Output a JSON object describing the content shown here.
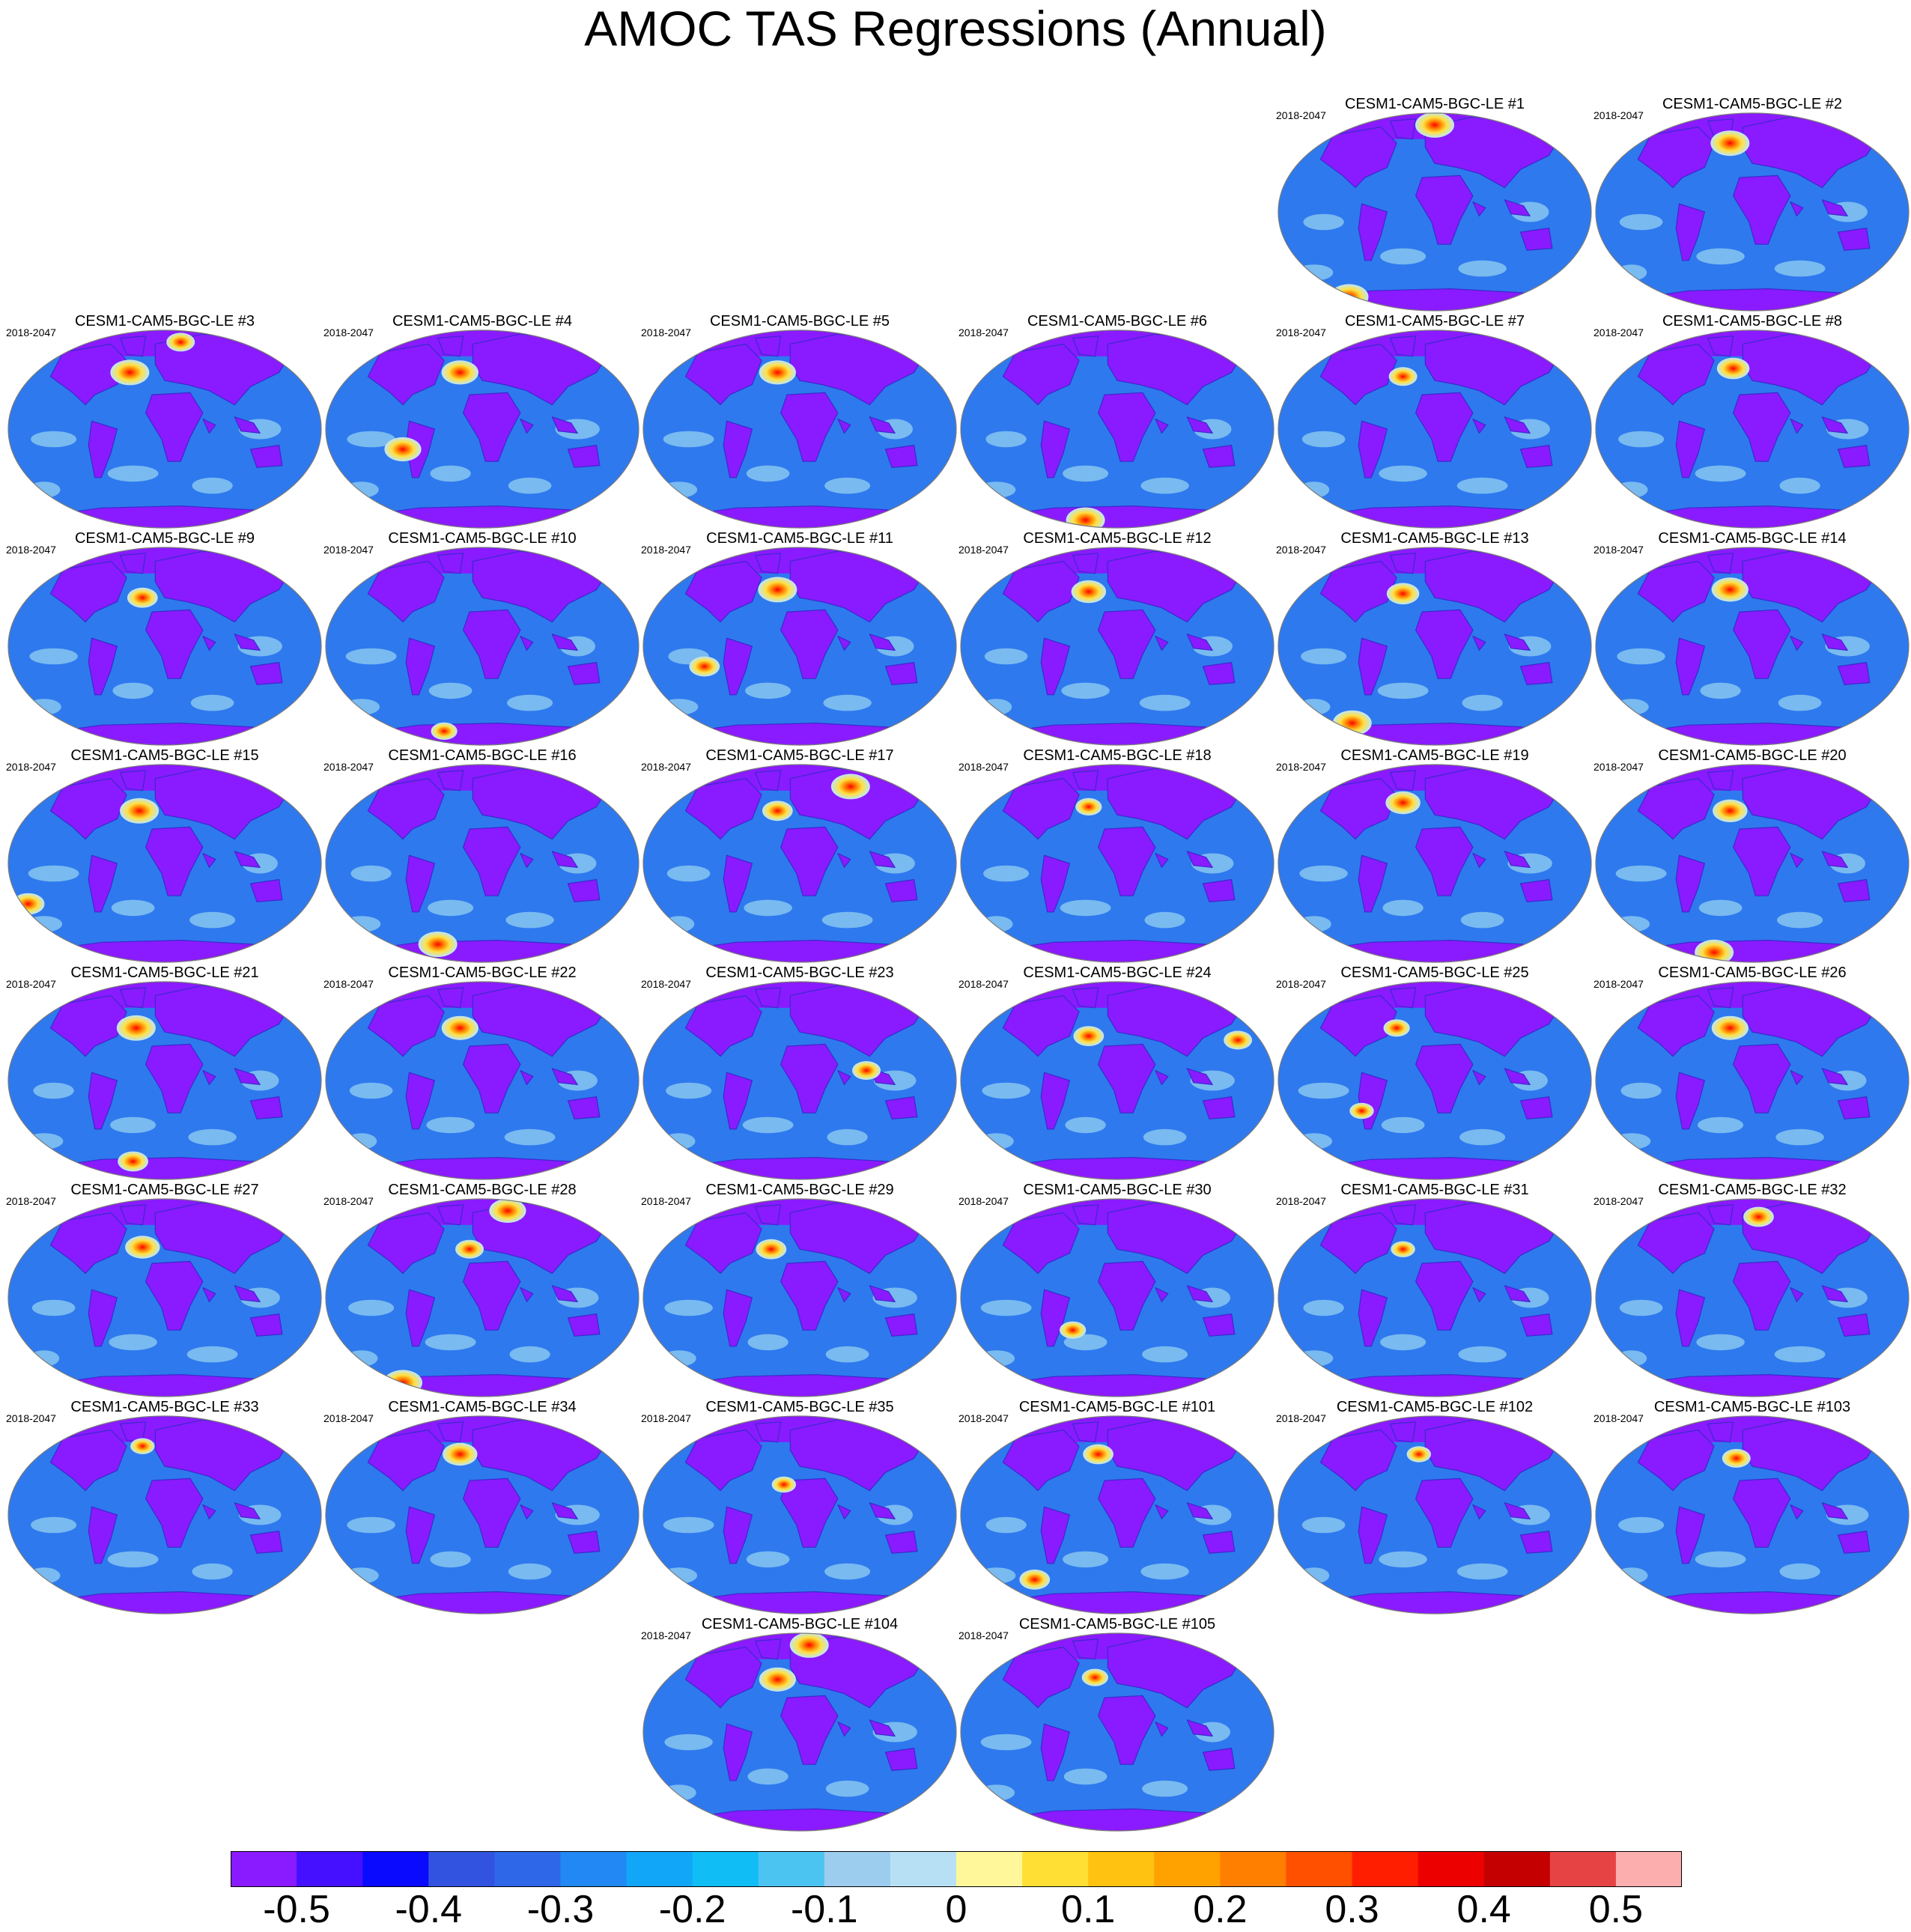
{
  "title": "AMOC TAS Regressions (Annual)",
  "period": "2018-2047",
  "panels": [
    {
      "title": "CESM1-CAM5-BGC-LE #1",
      "warm": [
        [
          0.5,
          0.07,
          1.0
        ],
        [
          0.23,
          0.92,
          1.0
        ]
      ]
    },
    {
      "title": "CESM1-CAM5-BGC-LE #2",
      "warm": [
        [
          0.43,
          0.16,
          1.0
        ]
      ]
    },
    {
      "title": "CESM1-CAM5-BGC-LE #3",
      "warm": [
        [
          0.39,
          0.22,
          1.0
        ],
        [
          0.55,
          0.07,
          0.5
        ]
      ]
    },
    {
      "title": "CESM1-CAM5-BGC-LE #4",
      "warm": [
        [
          0.43,
          0.22,
          0.9
        ],
        [
          0.25,
          0.6,
          0.9
        ]
      ]
    },
    {
      "title": "CESM1-CAM5-BGC-LE #5",
      "warm": [
        [
          0.43,
          0.22,
          0.9
        ]
      ]
    },
    {
      "title": "CESM1-CAM5-BGC-LE #6",
      "warm": [
        [
          0.4,
          0.95,
          1.0
        ]
      ]
    },
    {
      "title": "CESM1-CAM5-BGC-LE #7",
      "warm": [
        [
          0.4,
          0.24,
          0.5
        ]
      ]
    },
    {
      "title": "CESM1-CAM5-BGC-LE #8",
      "warm": [
        [
          0.44,
          0.2,
          0.7
        ]
      ]
    },
    {
      "title": "CESM1-CAM5-BGC-LE #9",
      "warm": [
        [
          0.43,
          0.26,
          0.6
        ]
      ]
    },
    {
      "title": "CESM1-CAM5-BGC-LE #10",
      "warm": [
        [
          0.38,
          0.92,
          0.4
        ]
      ]
    },
    {
      "title": "CESM1-CAM5-BGC-LE #11",
      "warm": [
        [
          0.43,
          0.22,
          1.0
        ],
        [
          0.2,
          0.6,
          0.6
        ]
      ]
    },
    {
      "title": "CESM1-CAM5-BGC-LE #12",
      "warm": [
        [
          0.41,
          0.23,
          0.8
        ]
      ]
    },
    {
      "title": "CESM1-CAM5-BGC-LE #13",
      "warm": [
        [
          0.4,
          0.24,
          0.7
        ],
        [
          0.24,
          0.88,
          1.0
        ]
      ]
    },
    {
      "title": "CESM1-CAM5-BGC-LE #14",
      "warm": [
        [
          0.43,
          0.22,
          0.9
        ]
      ]
    },
    {
      "title": "CESM1-CAM5-BGC-LE #15",
      "warm": [
        [
          0.42,
          0.24,
          1.0
        ],
        [
          0.07,
          0.7,
          0.7
        ]
      ]
    },
    {
      "title": "CESM1-CAM5-BGC-LE #16",
      "warm": [
        [
          0.36,
          0.9,
          1.0
        ]
      ]
    },
    {
      "title": "CESM1-CAM5-BGC-LE #17",
      "warm": [
        [
          0.66,
          0.12,
          1.0
        ],
        [
          0.43,
          0.24,
          0.6
        ]
      ]
    },
    {
      "title": "CESM1-CAM5-BGC-LE #18",
      "warm": [
        [
          0.41,
          0.22,
          0.4
        ]
      ]
    },
    {
      "title": "CESM1-CAM5-BGC-LE #19",
      "warm": [
        [
          0.4,
          0.2,
          0.8
        ]
      ]
    },
    {
      "title": "CESM1-CAM5-BGC-LE #20",
      "warm": [
        [
          0.43,
          0.24,
          0.8
        ],
        [
          0.38,
          0.94,
          1.0
        ]
      ]
    },
    {
      "title": "CESM1-CAM5-BGC-LE #21",
      "warm": [
        [
          0.41,
          0.24,
          1.0
        ],
        [
          0.4,
          0.9,
          0.6
        ]
      ]
    },
    {
      "title": "CESM1-CAM5-BGC-LE #22",
      "warm": [
        [
          0.43,
          0.24,
          0.9
        ]
      ]
    },
    {
      "title": "CESM1-CAM5-BGC-LE #23",
      "warm": [
        [
          0.71,
          0.45,
          0.5
        ]
      ]
    },
    {
      "title": "CESM1-CAM5-BGC-LE #24",
      "warm": [
        [
          0.41,
          0.28,
          0.6
        ],
        [
          0.88,
          0.3,
          0.5
        ]
      ]
    },
    {
      "title": "CESM1-CAM5-BGC-LE #25",
      "warm": [
        [
          0.38,
          0.24,
          0.4
        ],
        [
          0.27,
          0.65,
          0.3
        ]
      ]
    },
    {
      "title": "CESM1-CAM5-BGC-LE #26",
      "warm": [
        [
          0.43,
          0.24,
          0.9
        ]
      ]
    },
    {
      "title": "CESM1-CAM5-BGC-LE #27",
      "warm": [
        [
          0.43,
          0.25,
          0.8
        ]
      ]
    },
    {
      "title": "CESM1-CAM5-BGC-LE #28",
      "warm": [
        [
          0.58,
          0.07,
          0.9
        ],
        [
          0.25,
          0.92,
          1.0
        ],
        [
          0.46,
          0.26,
          0.5
        ]
      ]
    },
    {
      "title": "CESM1-CAM5-BGC-LE #29",
      "warm": [
        [
          0.41,
          0.26,
          0.6
        ]
      ]
    },
    {
      "title": "CESM1-CAM5-BGC-LE #30",
      "warm": [
        [
          0.36,
          0.66,
          0.4
        ]
      ]
    },
    {
      "title": "CESM1-CAM5-BGC-LE #31",
      "warm": [
        [
          0.4,
          0.26,
          0.3
        ]
      ]
    },
    {
      "title": "CESM1-CAM5-BGC-LE #32",
      "warm": [
        [
          0.52,
          0.1,
          0.6
        ]
      ]
    },
    {
      "title": "CESM1-CAM5-BGC-LE #33",
      "warm": [
        [
          0.43,
          0.16,
          0.3
        ]
      ]
    },
    {
      "title": "CESM1-CAM5-BGC-LE #34",
      "warm": [
        [
          0.43,
          0.2,
          0.8
        ]
      ]
    },
    {
      "title": "CESM1-CAM5-BGC-LE #35",
      "warm": [
        [
          0.45,
          0.35,
          0.3
        ]
      ]
    },
    {
      "title": "CESM1-CAM5-BGC-LE #101",
      "warm": [
        [
          0.44,
          0.2,
          0.6
        ],
        [
          0.24,
          0.82,
          0.6
        ]
      ]
    },
    {
      "title": "CESM1-CAM5-BGC-LE #102",
      "warm": [
        [
          0.45,
          0.2,
          0.3
        ]
      ]
    },
    {
      "title": "CESM1-CAM5-BGC-LE #103",
      "warm": [
        [
          0.45,
          0.22,
          0.5
        ]
      ]
    },
    {
      "title": "CESM1-CAM5-BGC-LE #104",
      "warm": [
        [
          0.53,
          0.07,
          1.0
        ],
        [
          0.43,
          0.24,
          0.9
        ]
      ]
    },
    {
      "title": "CESM1-CAM5-BGC-LE #105",
      "warm": [
        [
          0.43,
          0.23,
          0.4
        ]
      ]
    }
  ],
  "colorbar": {
    "colors": [
      "#8a1aff",
      "#4410ff",
      "#0a0aff",
      "#3153e0",
      "#2e67e8",
      "#2288f4",
      "#12a6f8",
      "#10bdf4",
      "#4cc4f2",
      "#9ccdee",
      "#b8e0f4",
      "#fff79a",
      "#ffdf34",
      "#ffc210",
      "#ffa200",
      "#ff7f00",
      "#ff5000",
      "#ff1f00",
      "#ec0000",
      "#c40000",
      "#e64444",
      "#fcaeae"
    ],
    "labels": [
      "-0.5",
      "-0.4",
      "-0.3",
      "-0.2",
      "-0.1",
      "0",
      "0.1",
      "0.2",
      "0.3",
      "0.4",
      "0.5"
    ]
  }
}
